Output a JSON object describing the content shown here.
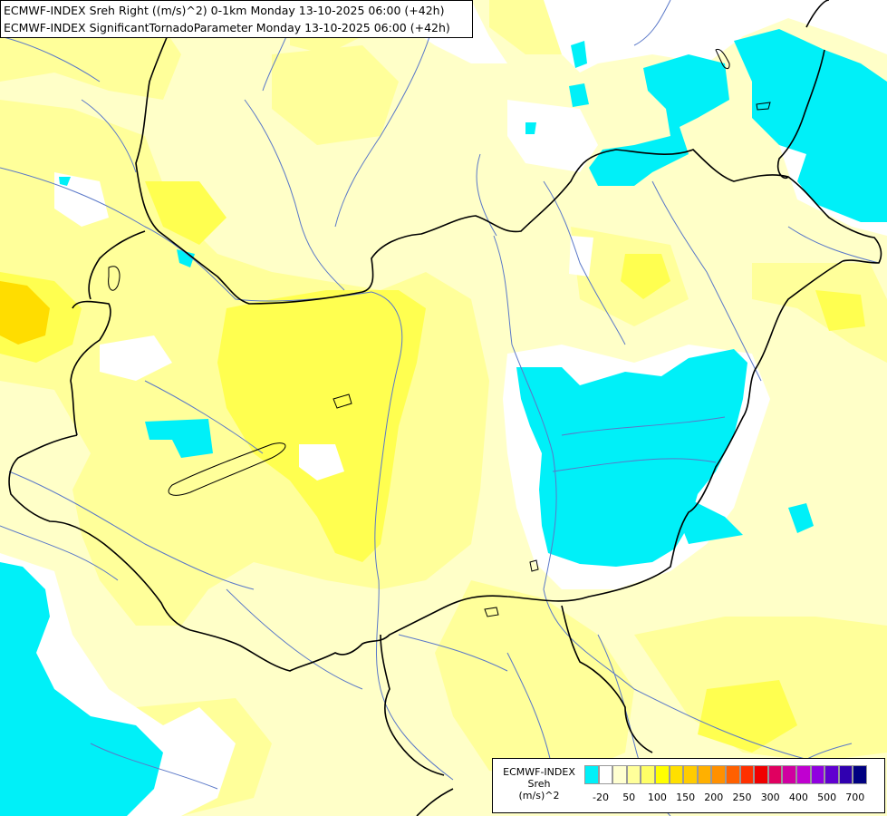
{
  "title": {
    "line1": "ECMWF-INDEX Sreh Right ((m/s)^2) 0-1km Monday 13-10-2025 06:00 (+42h)",
    "line2": "ECMWF-INDEX SignificantTornadoParameter Monday 13-10-2025 06:00 (+42h)"
  },
  "legend": {
    "title_line1": "ECMWF-INDEX",
    "title_line2": "Sreh",
    "title_line3": "(m/s)^2",
    "colors": [
      "#00f0f8",
      "#ffffff",
      "#ffffd0",
      "#ffff9a",
      "#ffff66",
      "#ffff00",
      "#ffe000",
      "#ffcc00",
      "#ffb000",
      "#ff9000",
      "#ff6000",
      "#ff3000",
      "#f00000",
      "#e00060",
      "#d000a0",
      "#c000d0",
      "#9000e0",
      "#6000d0",
      "#3000b0",
      "#000080"
    ],
    "tick_labels": [
      "-20",
      "50",
      "100",
      "150",
      "200",
      "250",
      "300",
      "400",
      "500",
      "700"
    ]
  },
  "map": {
    "palette": {
      "cyan": "#00f0f8",
      "white": "#ffffff",
      "pale": "#ffffc8",
      "light_yellow": "#ffff9a",
      "yellow": "#ffff50",
      "orange": "#ffdd00",
      "border": "#000000",
      "river": "#5a78c8"
    }
  }
}
